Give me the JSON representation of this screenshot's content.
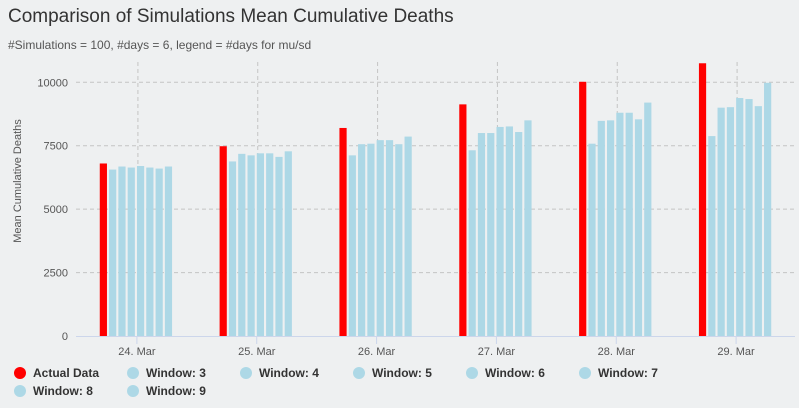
{
  "chart_data": {
    "type": "bar",
    "title": "Comparison of Simulations Mean Cumulative Deaths",
    "subtitle": "#Simulations = 100, #days = 6, legend = #days for mu/sd",
    "xlabel": "",
    "ylabel": "Mean Cumulative Deaths",
    "ylim": [
      0,
      10800
    ],
    "yticks": [
      0,
      2500,
      5000,
      7500,
      10000
    ],
    "ytick_labels": [
      "0",
      "2500",
      "5000",
      "7500",
      "10000"
    ],
    "grid": true,
    "legend_position": "bottom-left",
    "categories": [
      "24. Mar",
      "25. Mar",
      "26. Mar",
      "27. Mar",
      "28. Mar",
      "29. Mar"
    ],
    "series": [
      {
        "name": "Actual Data",
        "color": "#ff0000",
        "values": [
          6800,
          7480,
          8200,
          9130,
          10020,
          10750
        ]
      },
      {
        "name": "Window: 3",
        "color": "#add8e6",
        "values": [
          6560,
          6880,
          7120,
          7320,
          7580,
          7880
        ]
      },
      {
        "name": "Window: 4",
        "color": "#add8e6",
        "values": [
          6680,
          7180,
          7560,
          8000,
          8480,
          9000
        ]
      },
      {
        "name": "Window: 5",
        "color": "#add8e6",
        "values": [
          6640,
          7120,
          7580,
          8000,
          8500,
          9020
        ]
      },
      {
        "name": "Window: 6",
        "color": "#add8e6",
        "values": [
          6700,
          7200,
          7720,
          8240,
          8800,
          9380
        ]
      },
      {
        "name": "Window: 7",
        "color": "#add8e6",
        "values": [
          6640,
          7200,
          7720,
          8260,
          8800,
          9340
        ]
      },
      {
        "name": "Window: 8",
        "color": "#add8e6",
        "values": [
          6600,
          7060,
          7560,
          8040,
          8540,
          9060
        ]
      },
      {
        "name": "Window: 9",
        "color": "#add8e6",
        "values": [
          6680,
          7280,
          7860,
          8500,
          9200,
          9980
        ]
      }
    ]
  }
}
